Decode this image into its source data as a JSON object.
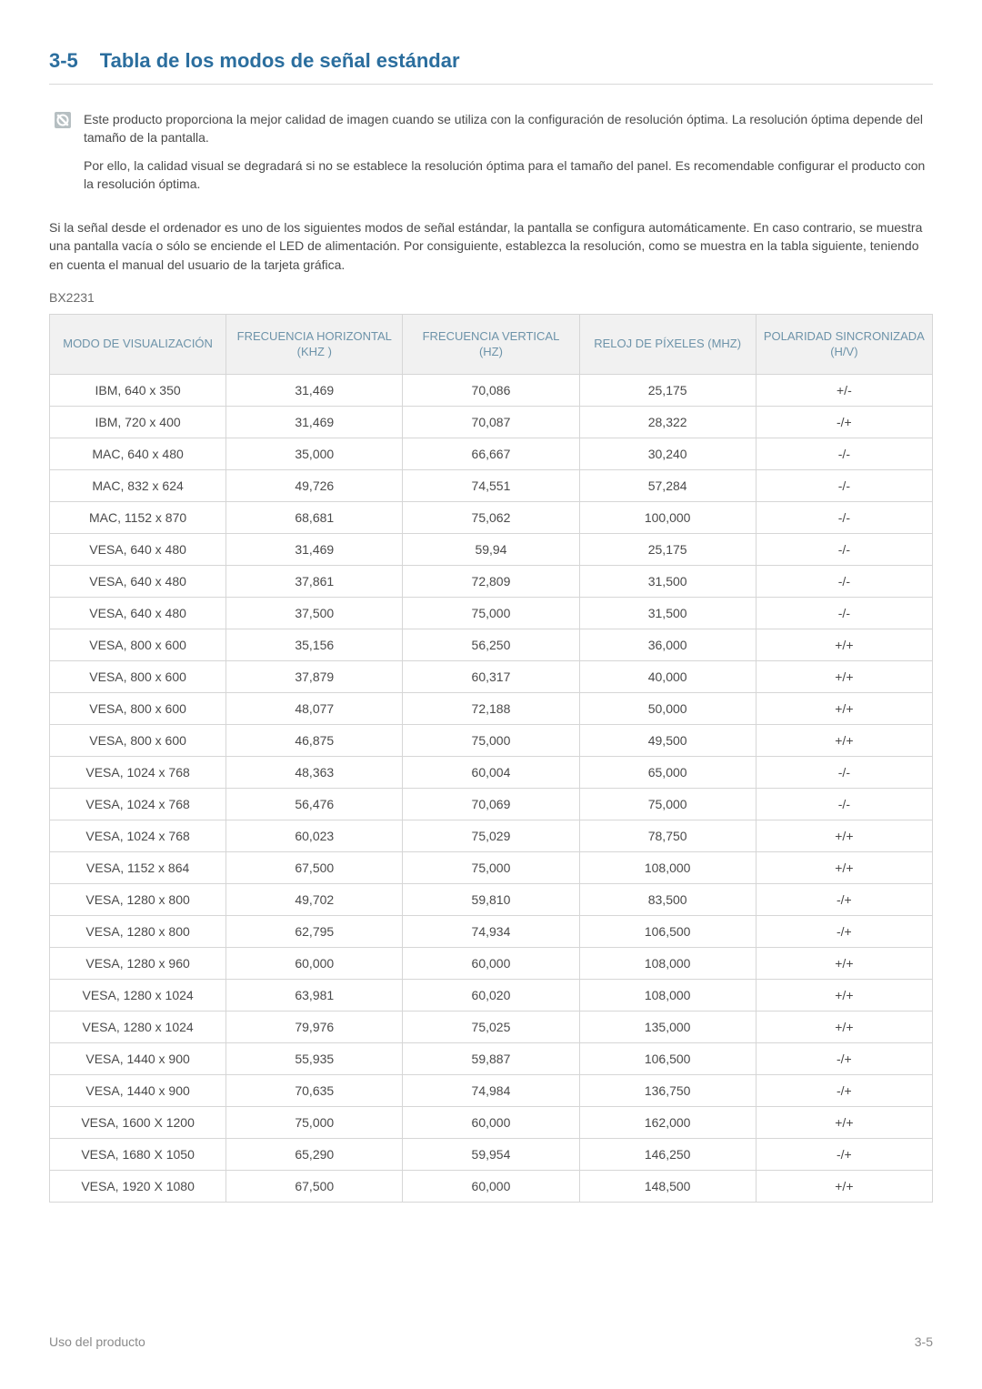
{
  "heading": {
    "num": "3-5",
    "title": "Tabla de los modos de señal estándar"
  },
  "note": {
    "p1": "Este producto proporciona la mejor calidad de imagen cuando se utiliza con la configuración de resolución óptima. La resolución óptima depende del tamaño de la pantalla.",
    "p2": "Por ello, la calidad visual se degradará si no se establece la resolución óptima para el tamaño del panel. Es recomendable configurar el producto con la resolución óptima."
  },
  "body_para": "Si la señal desde el ordenador es uno de los siguientes modos de señal estándar, la pantalla se configura automáticamente. En caso contrario, se muestra una pantalla vacía o sólo se enciende el LED de alimentación. Por consiguiente, establezca la resolución, como se muestra en la tabla siguiente, teniendo en cuenta el manual del usuario de la tarjeta gráfica.",
  "model": "BX2231",
  "table": {
    "columns": [
      "MODO DE VISUALIZACIÓN",
      "FRECUENCIA HORIZONTAL (KHZ )",
      "FRECUENCIA VERTICAL (HZ)",
      "RELOJ DE PÍXELES (MHZ)",
      "POLARIDAD SINCRONIZADA (H/V)"
    ],
    "rows": [
      [
        "IBM, 640 x 350",
        "31,469",
        "70,086",
        "25,175",
        "+/-"
      ],
      [
        "IBM, 720 x 400",
        "31,469",
        "70,087",
        "28,322",
        "-/+"
      ],
      [
        "MAC, 640 x 480",
        "35,000",
        "66,667",
        "30,240",
        "-/-"
      ],
      [
        "MAC, 832 x 624",
        "49,726",
        "74,551",
        "57,284",
        "-/-"
      ],
      [
        "MAC, 1152 x 870",
        "68,681",
        "75,062",
        "100,000",
        "-/-"
      ],
      [
        "VESA, 640 x 480",
        "31,469",
        "59,94",
        "25,175",
        "-/-"
      ],
      [
        "VESA, 640 x 480",
        "37,861",
        "72,809",
        "31,500",
        "-/-"
      ],
      [
        "VESA, 640 x 480",
        "37,500",
        "75,000",
        "31,500",
        "-/-"
      ],
      [
        "VESA, 800 x 600",
        "35,156",
        "56,250",
        "36,000",
        "+/+"
      ],
      [
        "VESA, 800 x 600",
        "37,879",
        "60,317",
        "40,000",
        "+/+"
      ],
      [
        "VESA, 800 x 600",
        "48,077",
        "72,188",
        "50,000",
        "+/+"
      ],
      [
        "VESA, 800 x 600",
        "46,875",
        "75,000",
        "49,500",
        "+/+"
      ],
      [
        "VESA, 1024 x 768",
        "48,363",
        "60,004",
        "65,000",
        "-/-"
      ],
      [
        "VESA, 1024 x 768",
        "56,476",
        "70,069",
        "75,000",
        "-/-"
      ],
      [
        "VESA, 1024 x 768",
        "60,023",
        "75,029",
        "78,750",
        "+/+"
      ],
      [
        "VESA, 1152 x 864",
        "67,500",
        "75,000",
        "108,000",
        "+/+"
      ],
      [
        "VESA, 1280 x 800",
        "49,702",
        "59,810",
        "83,500",
        "-/+"
      ],
      [
        "VESA, 1280 x 800",
        "62,795",
        "74,934",
        "106,500",
        "-/+"
      ],
      [
        "VESA, 1280 x 960",
        "60,000",
        "60,000",
        "108,000",
        "+/+"
      ],
      [
        "VESA, 1280 x 1024",
        "63,981",
        "60,020",
        "108,000",
        "+/+"
      ],
      [
        "VESA, 1280 x 1024",
        "79,976",
        "75,025",
        "135,000",
        "+/+"
      ],
      [
        "VESA, 1440 x 900",
        "55,935",
        "59,887",
        "106,500",
        "-/+"
      ],
      [
        "VESA, 1440 x 900",
        "70,635",
        "74,984",
        "136,750",
        "-/+"
      ],
      [
        "VESA, 1600 X 1200",
        "75,000",
        "60,000",
        "162,000",
        "+/+"
      ],
      [
        "VESA, 1680 X 1050",
        "65,290",
        "59,954",
        "146,250",
        "-/+"
      ],
      [
        "VESA, 1920 X 1080",
        "67,500",
        "60,000",
        "148,500",
        "+/+"
      ]
    ]
  },
  "footer": {
    "left": "Uso del producto",
    "right": "3-5"
  },
  "colors": {
    "heading": "#2b6e9e",
    "th_text": "#6d93a9",
    "th_bg": "#f1f1f1",
    "border": "#d6d6d6",
    "body_text": "#4a4a4a",
    "footer_text": "#8a8a8a",
    "icon_bg": "#b6bfc2",
    "icon_fg": "#ffffff"
  }
}
